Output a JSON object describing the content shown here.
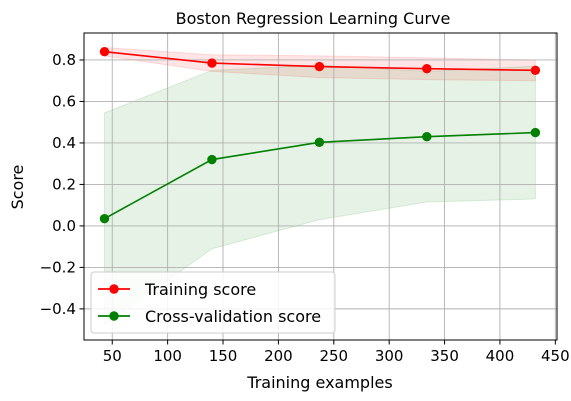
{
  "chart_data": {
    "type": "line",
    "title": "Boston Regression Learning Curve",
    "xlabel": "Training examples",
    "ylabel": "Score",
    "xlim": [
      24.5,
      451.5
    ],
    "ylim": [
      -0.55,
      0.93
    ],
    "xticks": [
      50,
      100,
      150,
      200,
      250,
      300,
      350,
      400,
      450
    ],
    "yticks": [
      -0.4,
      -0.2,
      0.0,
      0.2,
      0.4,
      0.6,
      0.8
    ],
    "xtick_labels": [
      "50",
      "100",
      "150",
      "200",
      "250",
      "300",
      "350",
      "400",
      "450"
    ],
    "ytick_labels": [
      "−0.4",
      "−0.2",
      "0.0",
      "0.2",
      "0.4",
      "0.6",
      "0.8"
    ],
    "grid": true,
    "legend_position": "lower-left",
    "x": [
      43,
      140,
      237,
      334,
      432
    ],
    "series": [
      {
        "name": "Training score",
        "color": "#ff0000",
        "values": [
          0.84,
          0.785,
          0.768,
          0.758,
          0.75
        ],
        "band_lower": [
          0.82,
          0.745,
          0.715,
          0.705,
          0.7
        ],
        "band_upper": [
          0.86,
          0.825,
          0.82,
          0.81,
          0.8
        ]
      },
      {
        "name": "Cross-validation score",
        "color": "#008000",
        "values": [
          0.035,
          0.32,
          0.403,
          0.43,
          0.45
        ],
        "band_lower": [
          -0.48,
          -0.11,
          0.03,
          0.115,
          0.13
        ],
        "band_upper": [
          0.545,
          0.75,
          0.775,
          0.745,
          0.77
        ]
      }
    ]
  }
}
